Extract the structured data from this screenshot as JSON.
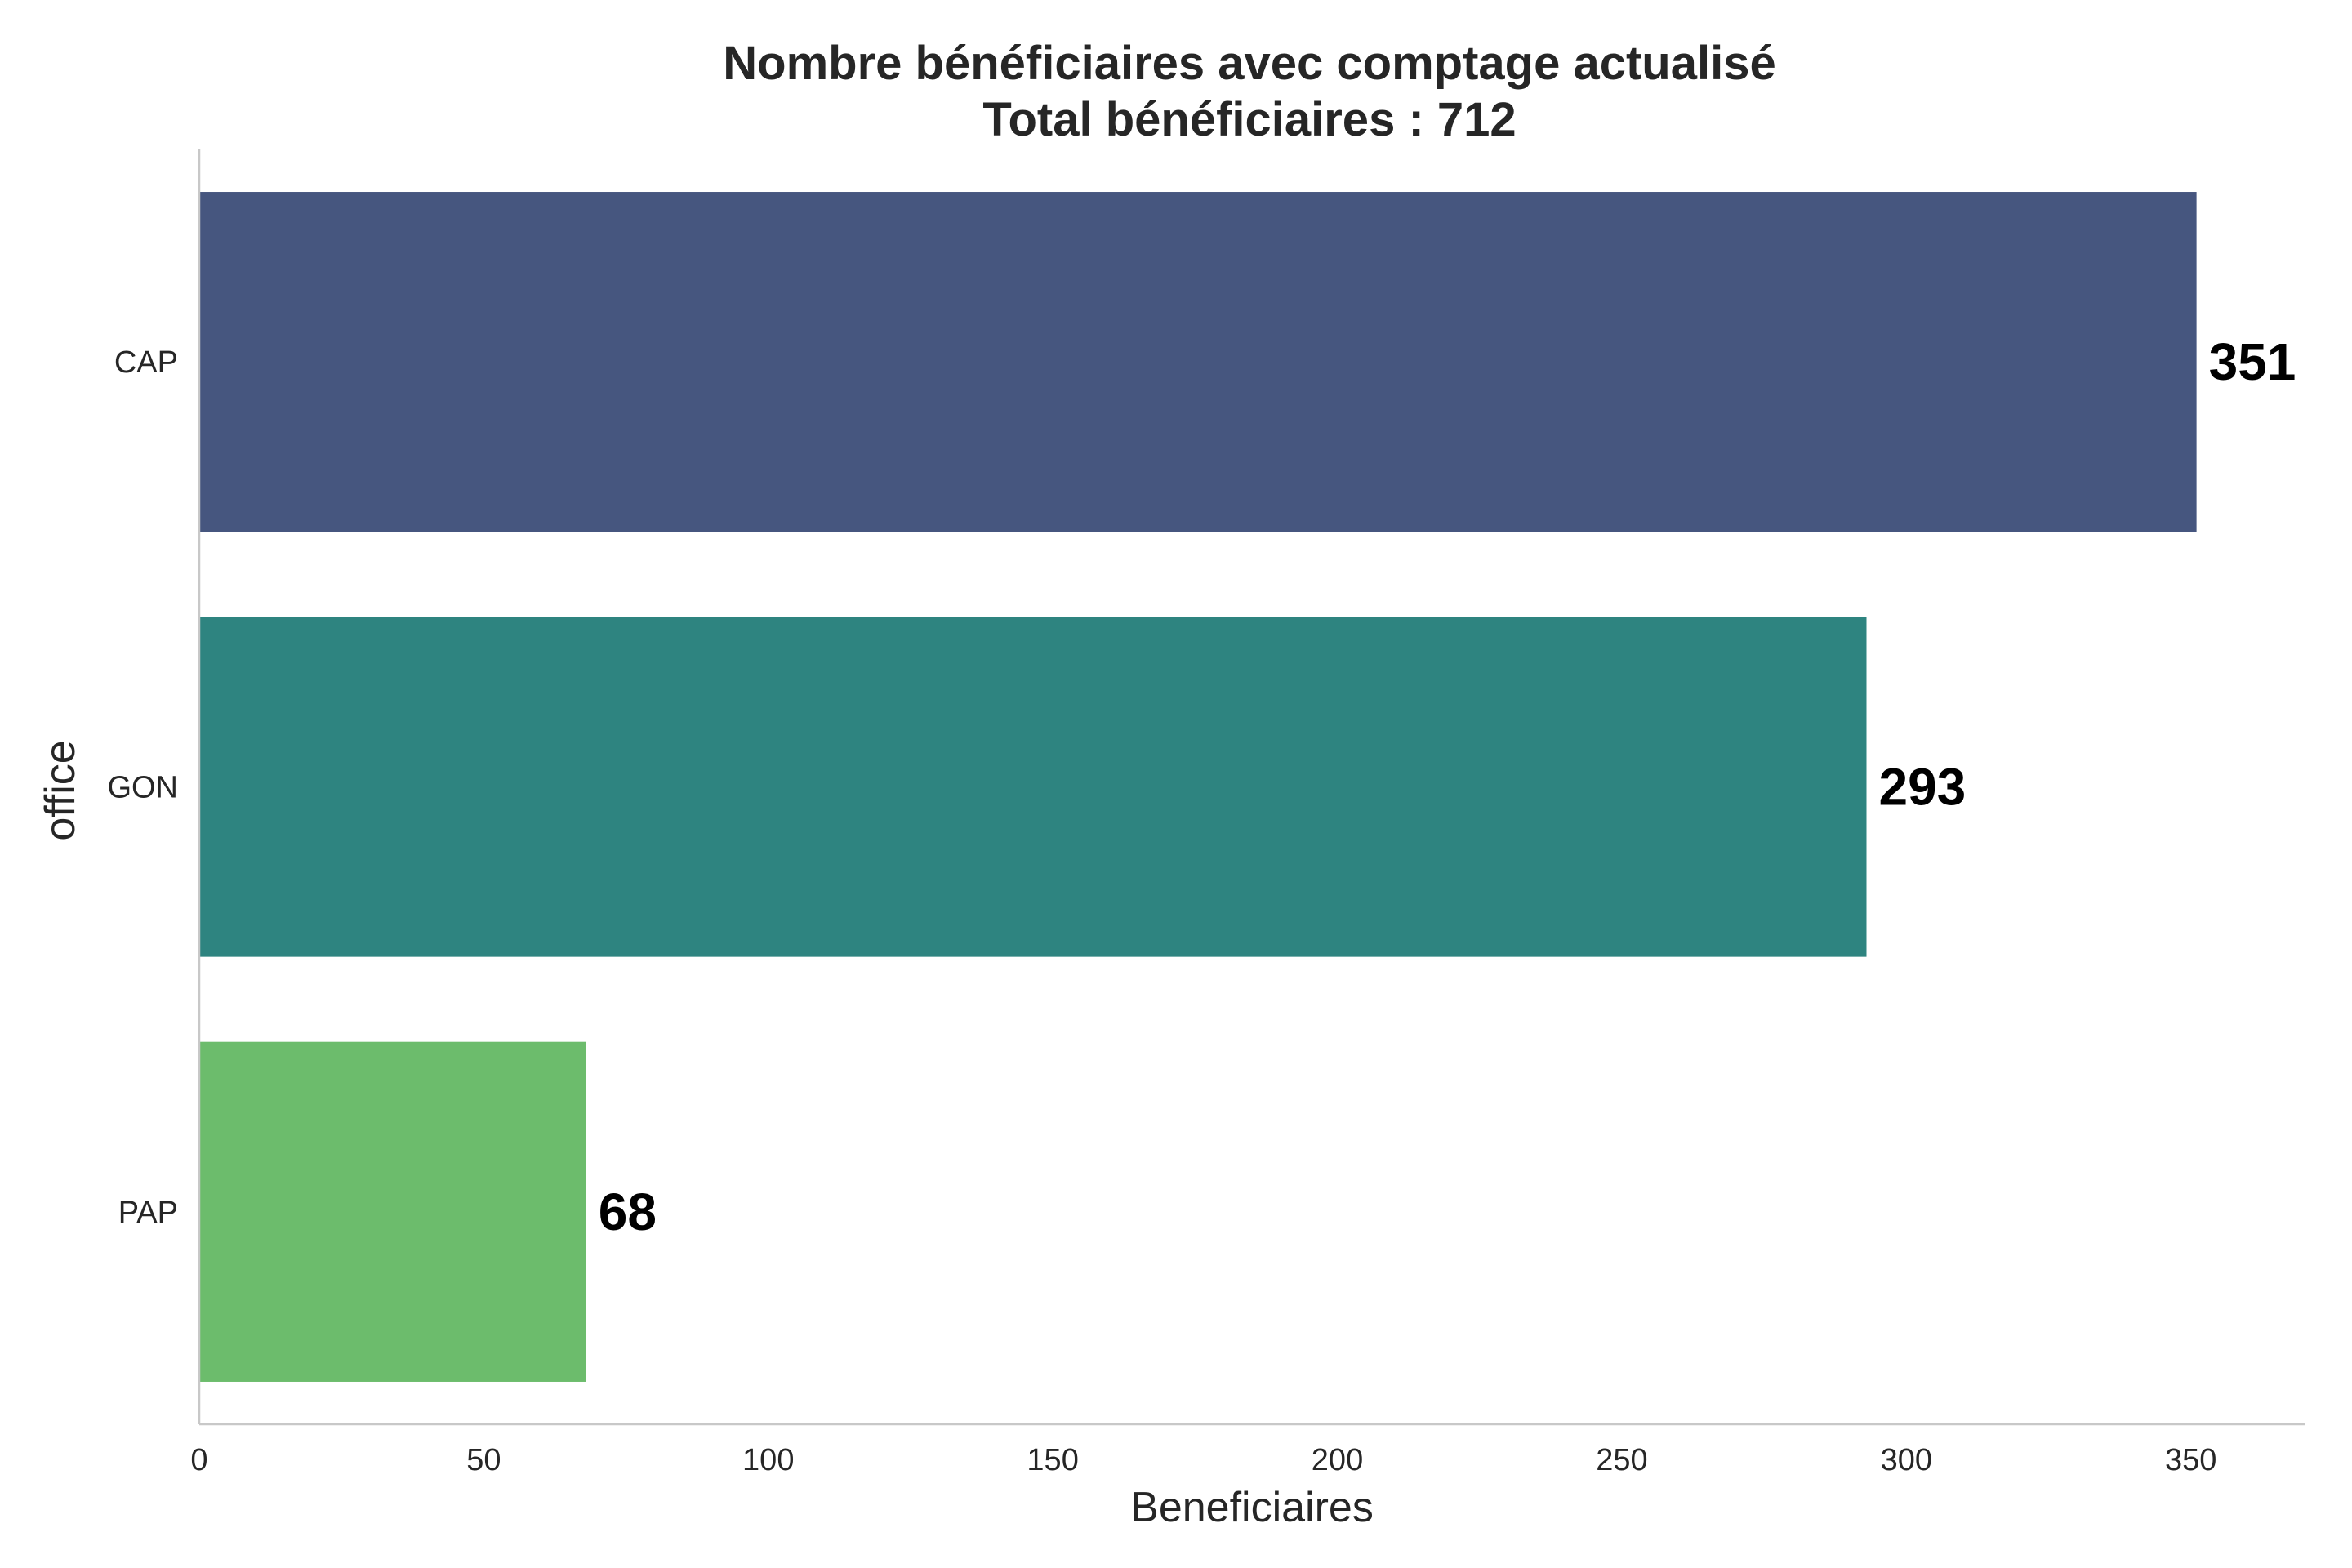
{
  "chart_data": {
    "type": "bar",
    "orientation": "horizontal",
    "title": "Nombre bénéficiaires avec comptage actualisé",
    "subtitle": "Total bénéficiaires : 712",
    "xlabel": "Beneficiaires",
    "ylabel": "office",
    "categories": [
      "CAP",
      "GON",
      "PAP"
    ],
    "values": [
      351,
      293,
      68
    ],
    "value_labels": [
      "351",
      "293",
      "68"
    ],
    "colors": [
      "#46567f",
      "#2e8480",
      "#6cbc6c"
    ],
    "xlim": [
      0,
      370
    ],
    "xticks": [
      0,
      50,
      100,
      150,
      200,
      250,
      300,
      350
    ],
    "xtick_labels": [
      "0",
      "50",
      "100",
      "150",
      "200",
      "250",
      "300",
      "350"
    ],
    "grid": false,
    "legend": "none"
  }
}
